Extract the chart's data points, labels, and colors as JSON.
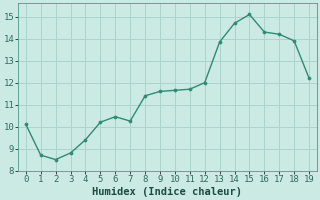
{
  "x": [
    0,
    1,
    2,
    3,
    4,
    5,
    6,
    7,
    8,
    9,
    10,
    11,
    12,
    13,
    14,
    15,
    16,
    17,
    18,
    19
  ],
  "y": [
    10.1,
    8.7,
    8.5,
    8.8,
    9.4,
    10.2,
    10.45,
    10.25,
    11.4,
    11.6,
    11.65,
    11.7,
    12.0,
    13.85,
    14.7,
    15.1,
    14.3,
    14.2,
    13.9,
    12.2
  ],
  "line_color": "#2e8b74",
  "marker_color": "#2e8b74",
  "bg_color": "#cceae4",
  "grid_color": "#aad4cc",
  "xlabel": "Humidex (Indice chaleur)",
  "xlim": [
    -0.5,
    19.5
  ],
  "ylim": [
    8.0,
    15.6
  ],
  "yticks": [
    8,
    9,
    10,
    11,
    12,
    13,
    14,
    15
  ],
  "xticks": [
    0,
    1,
    2,
    3,
    4,
    5,
    6,
    7,
    8,
    9,
    10,
    11,
    12,
    13,
    14,
    15,
    16,
    17,
    18,
    19
  ],
  "tick_label_fontsize": 6.5,
  "xlabel_fontsize": 7.5
}
